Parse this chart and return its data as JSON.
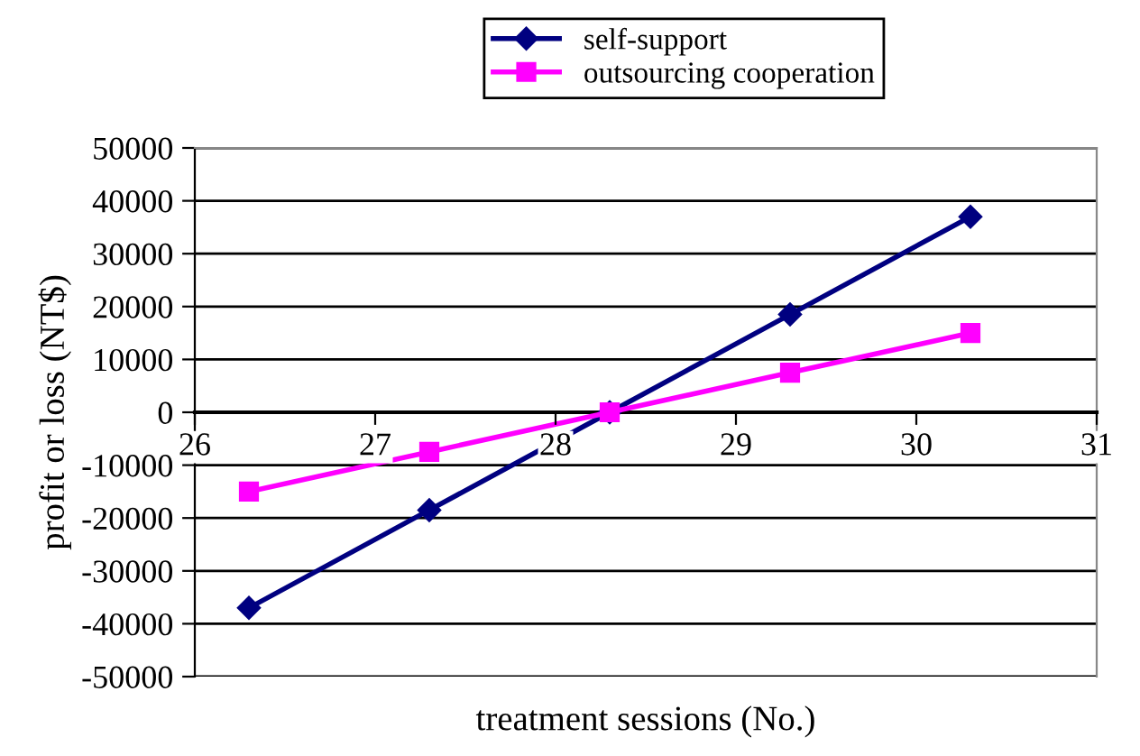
{
  "chart_data": {
    "type": "line",
    "xlabel": "treatment sessions (No.)",
    "ylabel": "profit or loss (NT$)",
    "x": [
      26.3,
      27.3,
      28.3,
      29.3,
      30.3
    ],
    "series": [
      {
        "name": "self-support",
        "color": "#000080",
        "marker": "diamond",
        "values": [
          -37000,
          -18500,
          0,
          18500,
          37000
        ]
      },
      {
        "name": "outsourcing cooperation",
        "color": "#ff00ff",
        "marker": "square",
        "values": [
          -15000,
          -7500,
          0,
          7500,
          15000
        ]
      }
    ],
    "xlim": [
      26,
      31
    ],
    "xticks": [
      26,
      27,
      28,
      29,
      30,
      31
    ],
    "ylim": [
      -50000,
      50000
    ],
    "yticks": [
      -50000,
      -40000,
      -30000,
      -20000,
      -10000,
      0,
      10000,
      20000,
      30000,
      40000,
      50000
    ],
    "grid": "y",
    "legend": "top",
    "line_style": "solid"
  }
}
